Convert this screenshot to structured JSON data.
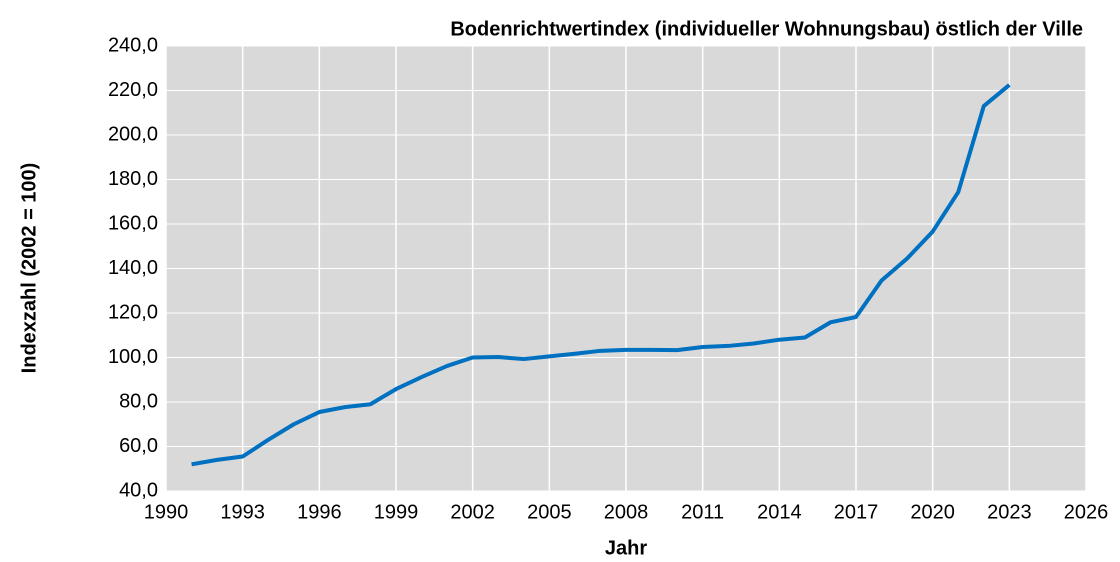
{
  "chart_data": {
    "type": "line",
    "title": "Bodenrichtwertindex (individueller Wohnungsbau) östlich der Ville",
    "x_label": "Jahr",
    "y_label": "Indexzahl (2002 = 100)",
    "x": [
      1991,
      1992,
      1993,
      1994,
      1995,
      1996,
      1997,
      1998,
      1999,
      2000,
      2001,
      2002,
      2003,
      2004,
      2005,
      2006,
      2007,
      2008,
      2009,
      2010,
      2011,
      2012,
      2013,
      2014,
      2015,
      2016,
      2017,
      2018,
      2019,
      2020,
      2021,
      2022,
      2023
    ],
    "series": [
      {
        "name": "Bodenrichtwertindex",
        "color": "#0070c0",
        "values": [
          52.0,
          54.0,
          55.5,
          63.0,
          70.0,
          75.5,
          77.7,
          79.0,
          85.8,
          91.2,
          96.2,
          100.0,
          100.2,
          99.3,
          100.5,
          101.7,
          103.0,
          103.4,
          103.4,
          103.3,
          104.7,
          105.2,
          106.3,
          108.0,
          109.0,
          115.8,
          118.2,
          134.6,
          144.5,
          156.6,
          174.3,
          213.0,
          222.5
        ]
      }
    ],
    "xlim": [
      1990,
      2026
    ],
    "xticks": [
      1990,
      1993,
      1996,
      1999,
      2002,
      2005,
      2008,
      2011,
      2014,
      2017,
      2020,
      2023,
      2026
    ],
    "ylim": [
      40,
      240
    ],
    "yticks": [
      {
        "value": 40,
        "label": "40,0"
      },
      {
        "value": 60,
        "label": "60,0"
      },
      {
        "value": 80,
        "label": "80,0"
      },
      {
        "value": 100,
        "label": "100,0"
      },
      {
        "value": 120,
        "label": "120,0"
      },
      {
        "value": 140,
        "label": "140,0"
      },
      {
        "value": 160,
        "label": "160,0"
      },
      {
        "value": 180,
        "label": "180,0"
      },
      {
        "value": 200,
        "label": "200,0"
      },
      {
        "value": 220,
        "label": "220,0"
      },
      {
        "value": 240,
        "label": "240,0"
      }
    ],
    "grid": true
  }
}
